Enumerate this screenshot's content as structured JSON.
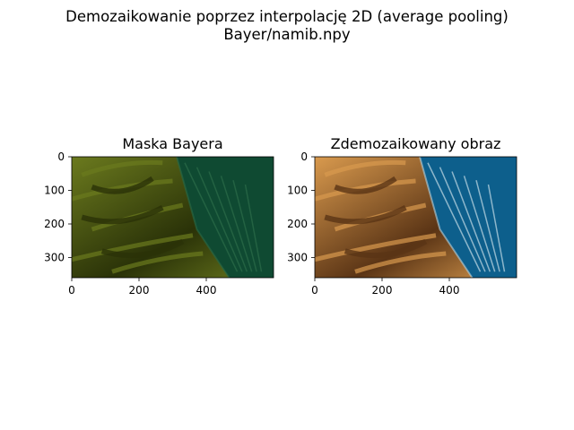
{
  "figure": {
    "suptitle_line1": "Demozaikowanie poprzez interpolację 2D (average pooling)",
    "suptitle_line2": "Bayer/namib.npy"
  },
  "chart_data": [
    {
      "type": "image",
      "title": "Maska Bayera",
      "xlabel": "",
      "ylabel": "",
      "image_extent": {
        "width": 600,
        "height": 360
      },
      "xlim": [
        0,
        600
      ],
      "ylim": [
        360,
        0
      ],
      "xticks": [
        0,
        200,
        400
      ],
      "yticks": [
        0,
        100,
        200,
        300
      ],
      "grid": false,
      "content": "bayer-mask aerial desert/ocean image",
      "palette": {
        "dune_light": "#6b7a1e",
        "dune_dark": "#2a3208",
        "sea": "#0f4a32",
        "surf": "#2a6a48"
      }
    },
    {
      "type": "image",
      "title": "Zdemozaikowany obraz",
      "xlabel": "",
      "ylabel": "",
      "image_extent": {
        "width": 600,
        "height": 360
      },
      "xlim": [
        0,
        600
      ],
      "ylim": [
        360,
        0
      ],
      "xticks": [
        0,
        200,
        400
      ],
      "yticks": [
        0,
        100,
        200,
        300
      ],
      "grid": false,
      "content": "demosaicked aerial desert/ocean image",
      "palette": {
        "dune_light": "#d99a4e",
        "dune_dark": "#5a3415",
        "sea": "#0d5f8c",
        "surf": "#b8d4e0"
      }
    }
  ]
}
